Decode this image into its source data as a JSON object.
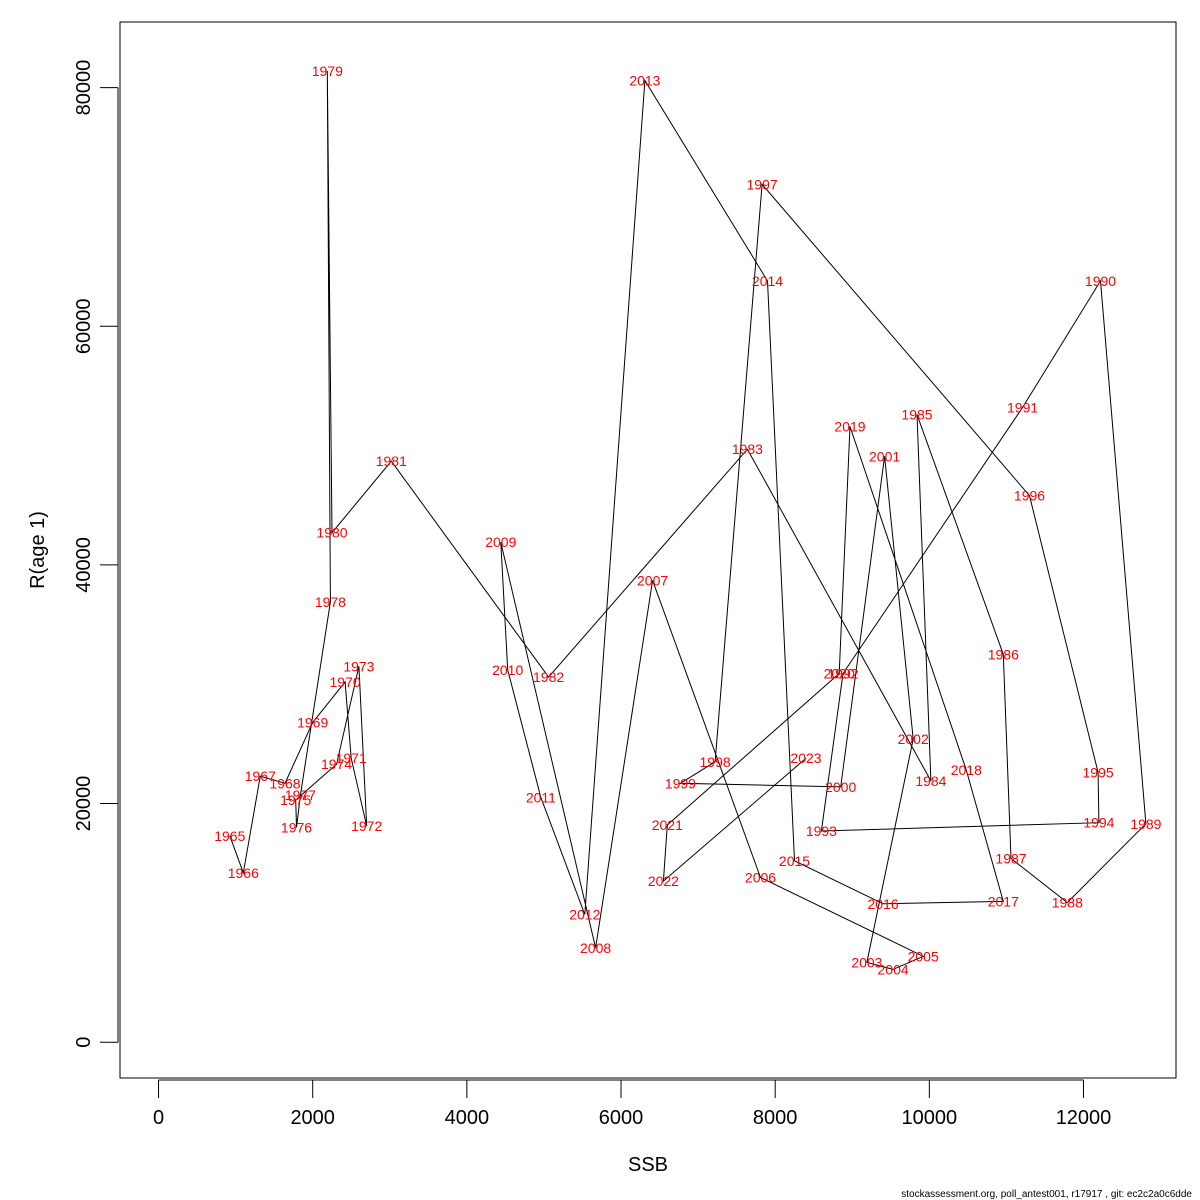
{
  "chart_data": {
    "type": "scatter",
    "connected": true,
    "xlabel": "SSB",
    "ylabel": "R(age 1)",
    "xlim": [
      -500,
      13200
    ],
    "ylim": [
      -3000,
      85500
    ],
    "x_ticks": [
      0,
      2000,
      4000,
      6000,
      8000,
      10000,
      12000
    ],
    "x_tick_labels": [
      "0",
      "2000",
      "4000",
      "6000",
      "8000",
      "10000",
      "12000"
    ],
    "y_ticks": [
      0,
      20000,
      40000,
      60000,
      80000
    ],
    "y_tick_labels": [
      "0",
      "20000",
      "40000",
      "60000",
      "80000"
    ],
    "grid": false,
    "line_color": "#000000",
    "label_color": "#ff0000",
    "points": [
      {
        "label": "1965",
        "x": 925,
        "y": 17300
      },
      {
        "label": "1966",
        "x": 1100,
        "y": 14200
      },
      {
        "label": "1967",
        "x": 1320,
        "y": 22300
      },
      {
        "label": "1968",
        "x": 1640,
        "y": 21700
      },
      {
        "label": "1969",
        "x": 2000,
        "y": 26800
      },
      {
        "label": "1970",
        "x": 2420,
        "y": 30200
      },
      {
        "label": "1971",
        "x": 2500,
        "y": 23800
      },
      {
        "label": "1972",
        "x": 2700,
        "y": 18100
      },
      {
        "label": "1973",
        "x": 2600,
        "y": 31500
      },
      {
        "label": "1974",
        "x": 2310,
        "y": 23300
      },
      {
        "label": "1975",
        "x": 1780,
        "y": 20300
      },
      {
        "label": "1976",
        "x": 1790,
        "y": 18000
      },
      {
        "label": "1977",
        "x": 1840,
        "y": 20700
      },
      {
        "label": "1978",
        "x": 2230,
        "y": 36900
      },
      {
        "label": "1979",
        "x": 2190,
        "y": 81400
      },
      {
        "label": "1980",
        "x": 2250,
        "y": 42700
      },
      {
        "label": "1981",
        "x": 3020,
        "y": 48700
      },
      {
        "label": "1982",
        "x": 5060,
        "y": 30600
      },
      {
        "label": "1983",
        "x": 7640,
        "y": 49700
      },
      {
        "label": "1984",
        "x": 10020,
        "y": 21900
      },
      {
        "label": "1985",
        "x": 9840,
        "y": 52600
      },
      {
        "label": "1986",
        "x": 10960,
        "y": 32500
      },
      {
        "label": "1987",
        "x": 11060,
        "y": 15400
      },
      {
        "label": "1988",
        "x": 11790,
        "y": 11700
      },
      {
        "label": "1989",
        "x": 12810,
        "y": 18300
      },
      {
        "label": "1990",
        "x": 12220,
        "y": 63800
      },
      {
        "label": "1991",
        "x": 11210,
        "y": 53200
      },
      {
        "label": "1992",
        "x": 8880,
        "y": 30900
      },
      {
        "label": "1993",
        "x": 8600,
        "y": 17700
      },
      {
        "label": "1994",
        "x": 12200,
        "y": 18400
      },
      {
        "label": "1995",
        "x": 12190,
        "y": 22600
      },
      {
        "label": "1996",
        "x": 11300,
        "y": 45800
      },
      {
        "label": "1997",
        "x": 7830,
        "y": 71900
      },
      {
        "label": "1998",
        "x": 7220,
        "y": 23500
      },
      {
        "label": "1999",
        "x": 6770,
        "y": 21700
      },
      {
        "label": "2000",
        "x": 8850,
        "y": 21400
      },
      {
        "label": "2001",
        "x": 9420,
        "y": 49100
      },
      {
        "label": "2002",
        "x": 9790,
        "y": 25400
      },
      {
        "label": "2003",
        "x": 9190,
        "y": 6700
      },
      {
        "label": "2004",
        "x": 9530,
        "y": 6100
      },
      {
        "label": "2005",
        "x": 9920,
        "y": 7200
      },
      {
        "label": "2006",
        "x": 7810,
        "y": 13800
      },
      {
        "label": "2007",
        "x": 6410,
        "y": 38700
      },
      {
        "label": "2008",
        "x": 5670,
        "y": 7900
      },
      {
        "label": "2009",
        "x": 4440,
        "y": 41900
      },
      {
        "label": "2010",
        "x": 4530,
        "y": 31200
      },
      {
        "label": "2011",
        "x": 4960,
        "y": 20500
      },
      {
        "label": "2012",
        "x": 5530,
        "y": 10700
      },
      {
        "label": "2013",
        "x": 6310,
        "y": 80600
      },
      {
        "label": "2014",
        "x": 7900,
        "y": 63800
      },
      {
        "label": "2015",
        "x": 8250,
        "y": 15200
      },
      {
        "label": "2016",
        "x": 9400,
        "y": 11600
      },
      {
        "label": "2017",
        "x": 10960,
        "y": 11800
      },
      {
        "label": "2018",
        "x": 10480,
        "y": 22800
      },
      {
        "label": "2019",
        "x": 8970,
        "y": 51600
      },
      {
        "label": "2020",
        "x": 8830,
        "y": 30900
      },
      {
        "label": "2021",
        "x": 6600,
        "y": 18200
      },
      {
        "label": "2022",
        "x": 6550,
        "y": 13500
      },
      {
        "label": "2023",
        "x": 8400,
        "y": 23800
      }
    ]
  },
  "footer": {
    "text": "stockassessment.org, poll_antest001, r17917 , git: ec2c2a0c6dde"
  }
}
